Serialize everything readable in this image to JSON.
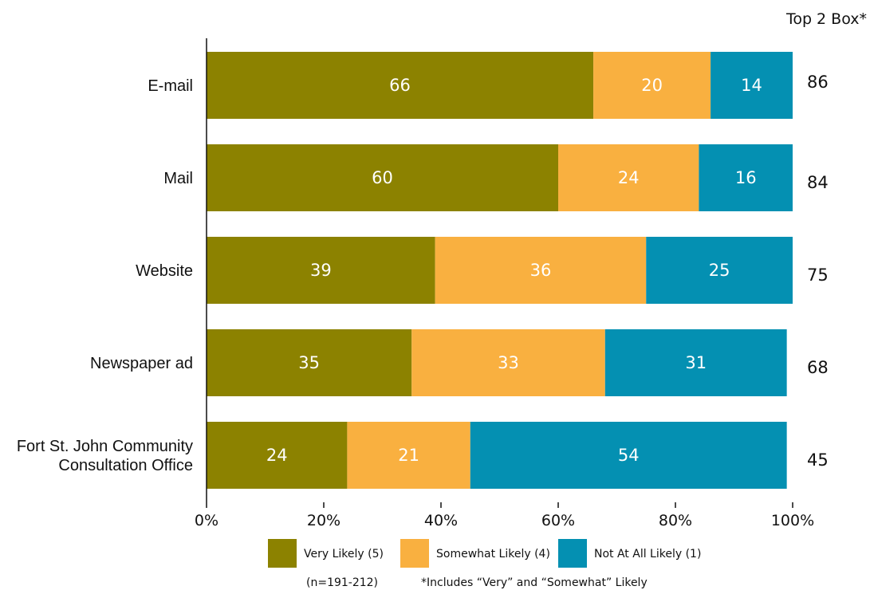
{
  "chart_data": {
    "type": "bar",
    "orientation": "horizontal",
    "stacked": true,
    "categories": [
      [
        "E-mail"
      ],
      [
        "Mail"
      ],
      [
        "Website"
      ],
      [
        "Newspaper ad"
      ],
      [
        "Fort St. John Community",
        "Consultation Office"
      ]
    ],
    "series": [
      {
        "name": "Very Likely (5)",
        "color": "#8c8200",
        "values": [
          66,
          60,
          39,
          35,
          24
        ]
      },
      {
        "name": "Somewhat Likely (4)",
        "color": "#f9b040",
        "values": [
          20,
          24,
          36,
          33,
          21
        ]
      },
      {
        "name": "Not At All Likely (1)",
        "color": "#0490b2",
        "values": [
          14,
          16,
          25,
          31,
          54
        ]
      }
    ],
    "xlim": [
      0,
      100
    ],
    "xticks": [
      "0%",
      "20%",
      "40%",
      "60%",
      "80%",
      "100%"
    ],
    "top2_header": "Top 2 Box*",
    "top2_values": [
      "86",
      "84",
      "75",
      "68",
      "45"
    ],
    "legend_position": "bottom",
    "footnote_n": "(n=191-212)",
    "footnote_note": "*Includes “Very” and “Somewhat” Likely"
  }
}
